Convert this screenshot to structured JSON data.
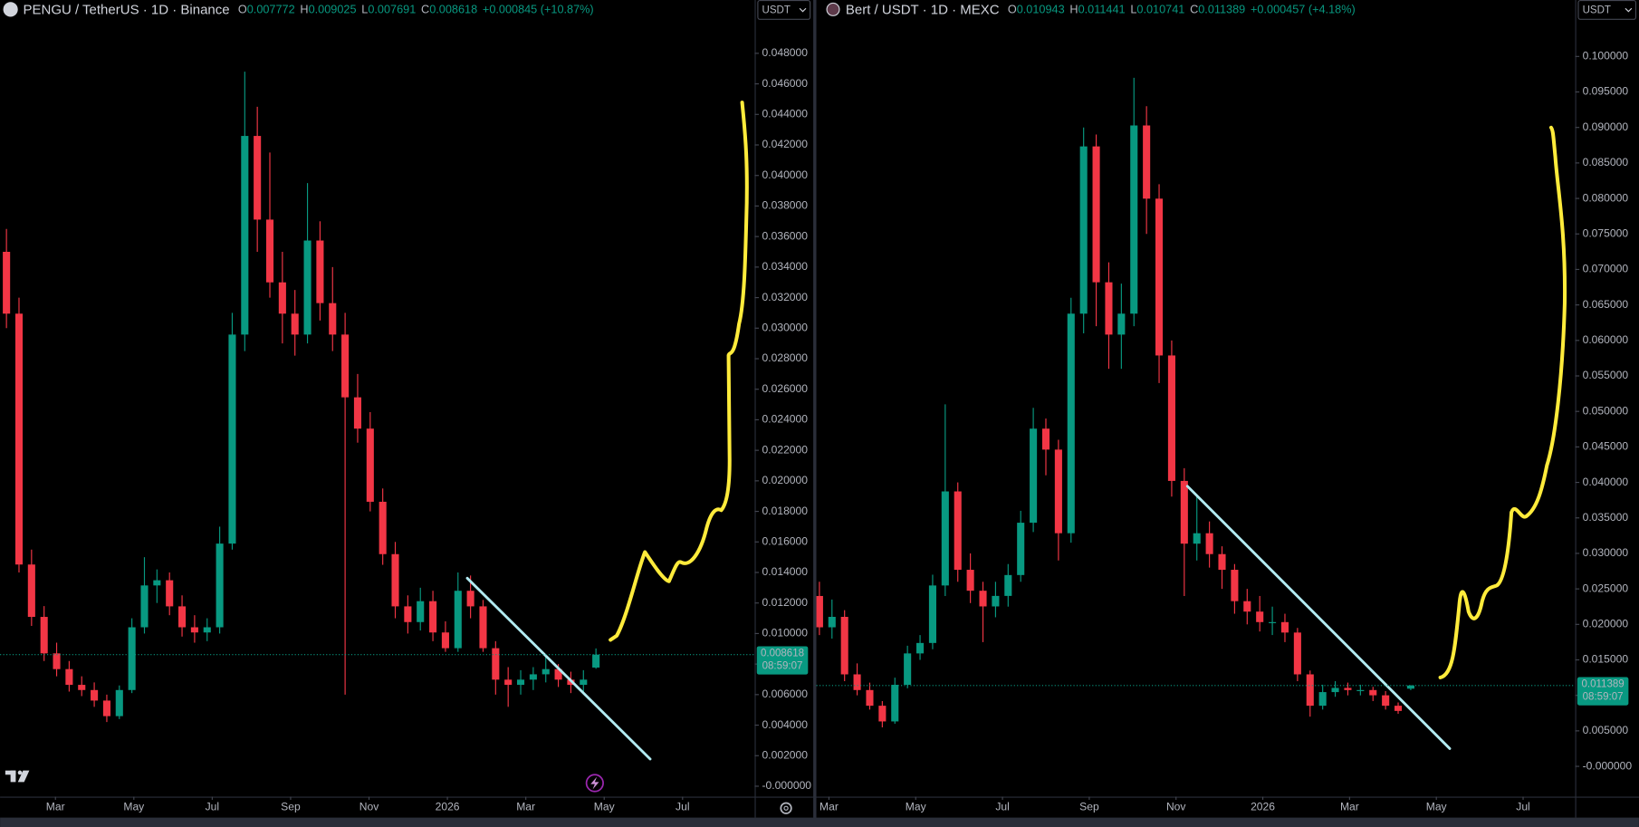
{
  "chart_data": [
    {
      "type": "candlestick",
      "title": "PENGU / TetherUS · 1D · Binance",
      "legend": [
        {
          "label": "O",
          "value": 0.007772
        },
        {
          "label": "H",
          "value": 0.009025
        },
        {
          "label": "L",
          "value": 0.007691
        },
        {
          "label": "C",
          "value": 0.008618
        }
      ],
      "change": "+0.000845 (+10.87%)",
      "currency": "USDT",
      "last_price": 0.008618,
      "countdown": "08:59:07",
      "colors": {
        "up": "#089981",
        "down": "#f23645"
      },
      "x": [
        0.75,
        1.07,
        1.39,
        1.71,
        2.03,
        2.35,
        2.67,
        2.99,
        3.31,
        3.63,
        3.95,
        4.27,
        4.59,
        4.91,
        5.23,
        5.55,
        5.87,
        6.19,
        6.51,
        6.83,
        7.15,
        7.47,
        7.79,
        8.11,
        8.43,
        8.75,
        9.07,
        9.39,
        9.71,
        10.03,
        10.35,
        10.67,
        10.99,
        11.31,
        11.63,
        11.95,
        12.27,
        12.59,
        12.91,
        13.23,
        13.55,
        13.87,
        14.19,
        14.51,
        14.83,
        15.15,
        15.47,
        15.79
      ],
      "open": [
        0.035,
        0.03095,
        0.01452,
        0.01109,
        0.0087,
        0.00767,
        0.00664,
        0.0063,
        0.00561,
        0.00459,
        0.0063,
        0.01041,
        0.01315,
        0.01349,
        0.01178,
        0.01041,
        0.01007,
        0.01041,
        0.01589,
        0.02958,
        0.04259,
        0.03711,
        0.033,
        0.03095,
        0.02958,
        0.03574,
        0.03164,
        0.02958,
        0.02547,
        0.02342,
        0.01863,
        0.0152,
        0.01178,
        0.01075,
        0.01212,
        0.01007,
        0.00904,
        0.0128,
        0.01178,
        0.00904,
        0.00698,
        0.00664,
        0.00698,
        0.00733,
        0.00767,
        0.00698,
        0.00664,
        0.007772
      ],
      "high": [
        0.0365,
        0.032,
        0.0155,
        0.0118,
        0.0094,
        0.0082,
        0.0072,
        0.0068,
        0.006,
        0.0066,
        0.011,
        0.015,
        0.0142,
        0.014,
        0.0125,
        0.0112,
        0.011,
        0.017,
        0.031,
        0.0468,
        0.0445,
        0.0415,
        0.035,
        0.0325,
        0.0395,
        0.037,
        0.034,
        0.031,
        0.027,
        0.0245,
        0.0195,
        0.016,
        0.0125,
        0.013,
        0.0128,
        0.0108,
        0.014,
        0.0138,
        0.0122,
        0.0095,
        0.0078,
        0.0076,
        0.0078,
        0.0085,
        0.008,
        0.0075,
        0.0076,
        0.009025
      ],
      "low": [
        0.03,
        0.014,
        0.0105,
        0.0082,
        0.0072,
        0.0062,
        0.0059,
        0.0052,
        0.0042,
        0.0044,
        0.0061,
        0.01,
        0.012,
        0.0112,
        0.0098,
        0.0094,
        0.0095,
        0.01,
        0.0155,
        0.0285,
        0.035,
        0.032,
        0.029,
        0.0282,
        0.029,
        0.0305,
        0.0285,
        0.006,
        0.0225,
        0.018,
        0.0145,
        0.011,
        0.01,
        0.0102,
        0.0095,
        0.0088,
        0.0088,
        0.011,
        0.0088,
        0.006,
        0.0052,
        0.006,
        0.0063,
        0.0068,
        0.0065,
        0.0061,
        0.0062,
        0.007691
      ],
      "close": [
        0.03095,
        0.01452,
        0.01109,
        0.0087,
        0.00767,
        0.00664,
        0.0063,
        0.00561,
        0.00459,
        0.0063,
        0.01041,
        0.01315,
        0.01349,
        0.01178,
        0.01041,
        0.01007,
        0.01041,
        0.01589,
        0.02958,
        0.04259,
        0.03711,
        0.033,
        0.03095,
        0.02958,
        0.03574,
        0.03164,
        0.02958,
        0.02547,
        0.02342,
        0.01863,
        0.0152,
        0.01178,
        0.01075,
        0.01212,
        0.01007,
        0.00904,
        0.0128,
        0.01178,
        0.00904,
        0.00698,
        0.00664,
        0.00698,
        0.00733,
        0.00767,
        0.00698,
        0.00664,
        0.00698,
        0.008618
      ],
      "xlim": [
        0.587,
        19.84
      ],
      "xticks": [
        {
          "value": 2,
          "label": "Mar"
        },
        {
          "value": 4,
          "label": "May"
        },
        {
          "value": 6,
          "label": "Jul"
        },
        {
          "value": 8,
          "label": "Sep"
        },
        {
          "value": 10,
          "label": "Nov"
        },
        {
          "value": 12,
          "label": "2026"
        },
        {
          "value": 14,
          "label": "Mar"
        },
        {
          "value": 16,
          "label": "May"
        },
        {
          "value": 18,
          "label": "Jul"
        }
      ],
      "ylim": [
        -0.000685,
        0.049986
      ],
      "yticks": [
        {
          "value": 0.048,
          "label": "0.048000"
        },
        {
          "value": 0.046,
          "label": "0.046000"
        },
        {
          "value": 0.044,
          "label": "0.044000"
        },
        {
          "value": 0.042,
          "label": "0.042000"
        },
        {
          "value": 0.04,
          "label": "0.040000"
        },
        {
          "value": 0.038,
          "label": "0.038000"
        },
        {
          "value": 0.036,
          "label": "0.036000"
        },
        {
          "value": 0.034,
          "label": "0.034000"
        },
        {
          "value": 0.032,
          "label": "0.032000"
        },
        {
          "value": 0.03,
          "label": "0.030000"
        },
        {
          "value": 0.028,
          "label": "0.028000"
        },
        {
          "value": 0.026,
          "label": "0.026000"
        },
        {
          "value": 0.024,
          "label": "0.024000"
        },
        {
          "value": 0.022,
          "label": "0.022000"
        },
        {
          "value": 0.02,
          "label": "0.020000"
        },
        {
          "value": 0.018,
          "label": "0.018000"
        },
        {
          "value": 0.016,
          "label": "0.016000"
        },
        {
          "value": 0.014,
          "label": "0.014000"
        },
        {
          "value": 0.012,
          "label": "0.012000"
        },
        {
          "value": 0.01,
          "label": "0.010000"
        },
        {
          "value": 0.008,
          "label": "0.008000"
        },
        {
          "value": 0.006,
          "label": "0.006000"
        },
        {
          "value": 0.004,
          "label": "0.004000"
        },
        {
          "value": 0.002,
          "label": "0.002000"
        },
        {
          "value": 0,
          "label": "-0.000000"
        }
      ]
    },
    {
      "type": "candlestick",
      "title": "Bert / USDT · 1D · MEXC",
      "legend": [
        {
          "label": "O",
          "value": 0.010943
        },
        {
          "label": "H",
          "value": 0.011441
        },
        {
          "label": "L",
          "value": 0.010741
        },
        {
          "label": "C",
          "value": 0.011389
        }
      ],
      "change": "+0.000457 (+4.18%)",
      "currency": "USDT",
      "last_price": 0.011389,
      "countdown": "08:59:07",
      "colors": {
        "up": "#089981",
        "down": "#f23645"
      },
      "x": [
        1.78,
        2.07,
        2.36,
        2.65,
        2.94,
        3.23,
        3.52,
        3.81,
        4.1,
        4.39,
        4.68,
        4.97,
        5.26,
        5.55,
        5.84,
        6.13,
        6.42,
        6.71,
        7,
        7.29,
        7.58,
        7.87,
        8.16,
        8.45,
        8.74,
        9.03,
        9.32,
        9.61,
        9.9,
        10.19,
        10.48,
        10.77,
        11.06,
        11.35,
        11.64,
        11.93,
        12.22,
        12.51,
        12.8,
        13.09,
        13.38,
        13.67,
        13.96,
        14.25,
        14.54,
        14.83,
        15.12,
        15.41
      ],
      "open": [
        0.024,
        0.01959,
        0.02106,
        0.01296,
        0.01075,
        0.00854,
        0.00633,
        0.01149,
        0.01591,
        0.01738,
        0.02548,
        0.03873,
        0.02769,
        0.02474,
        0.02253,
        0.02401,
        0.02695,
        0.03432,
        0.04757,
        0.04462,
        0.03284,
        0.06377,
        0.08733,
        0.06819,
        0.06082,
        0.06377,
        0.09028,
        0.07997,
        0.05788,
        0.04021,
        0.03137,
        0.03284,
        0.0299,
        0.02769,
        0.02327,
        0.0218,
        0.02032,
        0.02032,
        0.01885,
        0.01296,
        0.00854,
        0.01046,
        0.01105,
        0.01075,
        0.01075,
        0.01001,
        0.00854,
        0.010943
      ],
      "high": [
        0.026,
        0.0235,
        0.022,
        0.0145,
        0.0118,
        0.0092,
        0.0125,
        0.017,
        0.0185,
        0.027,
        0.051,
        0.04,
        0.03,
        0.026,
        0.026,
        0.0285,
        0.036,
        0.0505,
        0.049,
        0.046,
        0.066,
        0.09,
        0.089,
        0.071,
        0.068,
        0.097,
        0.093,
        0.082,
        0.06,
        0.042,
        0.038,
        0.0345,
        0.031,
        0.0285,
        0.025,
        0.024,
        0.0225,
        0.0215,
        0.0195,
        0.0135,
        0.0115,
        0.012,
        0.0118,
        0.0115,
        0.0112,
        0.0106,
        0.009,
        0.011441
      ],
      "low": [
        0.0185,
        0.018,
        0.012,
        0.01,
        0.008,
        0.0055,
        0.006,
        0.011,
        0.015,
        0.0165,
        0.024,
        0.026,
        0.023,
        0.0175,
        0.021,
        0.0225,
        0.026,
        0.033,
        0.041,
        0.029,
        0.0315,
        0.061,
        0.062,
        0.056,
        0.056,
        0.062,
        0.075,
        0.054,
        0.038,
        0.024,
        0.029,
        0.028,
        0.025,
        0.0215,
        0.02,
        0.019,
        0.0185,
        0.0175,
        0.012,
        0.007,
        0.008,
        0.0098,
        0.01,
        0.01,
        0.0092,
        0.008,
        0.0074,
        0.010741
      ],
      "close": [
        0.01959,
        0.02106,
        0.01296,
        0.01075,
        0.00854,
        0.00633,
        0.01149,
        0.01591,
        0.01738,
        0.02548,
        0.03873,
        0.02769,
        0.02474,
        0.02253,
        0.02401,
        0.02695,
        0.03432,
        0.04757,
        0.04462,
        0.03284,
        0.06377,
        0.08733,
        0.06819,
        0.06082,
        0.06377,
        0.09028,
        0.07997,
        0.05788,
        0.04021,
        0.03137,
        0.03284,
        0.0299,
        0.02769,
        0.02327,
        0.0218,
        0.02032,
        0.02032,
        0.01885,
        0.01296,
        0.00854,
        0.01046,
        0.01105,
        0.01075,
        0.01075,
        0.01001,
        0.00854,
        0.00781,
        0.011389
      ],
      "xlim": [
        1.71,
        19.2
      ],
      "xticks": [
        {
          "value": 2,
          "label": "Mar"
        },
        {
          "value": 4,
          "label": "May"
        },
        {
          "value": 6,
          "label": "Jul"
        },
        {
          "value": 8,
          "label": "Sep"
        },
        {
          "value": 10,
          "label": "Nov"
        },
        {
          "value": 12,
          "label": "2026"
        },
        {
          "value": 14,
          "label": "Mar"
        },
        {
          "value": 16,
          "label": "May"
        },
        {
          "value": 18,
          "label": "Jul"
        }
      ],
      "ylim": [
        -0.004271,
        0.104713
      ],
      "yticks": [
        {
          "value": 0.1,
          "label": "0.100000"
        },
        {
          "value": 0.095,
          "label": "0.095000"
        },
        {
          "value": 0.09,
          "label": "0.090000"
        },
        {
          "value": 0.085,
          "label": "0.085000"
        },
        {
          "value": 0.08,
          "label": "0.080000"
        },
        {
          "value": 0.075,
          "label": "0.075000"
        },
        {
          "value": 0.07,
          "label": "0.070000"
        },
        {
          "value": 0.065,
          "label": "0.065000"
        },
        {
          "value": 0.06,
          "label": "0.060000"
        },
        {
          "value": 0.055,
          "label": "0.055000"
        },
        {
          "value": 0.05,
          "label": "0.050000"
        },
        {
          "value": 0.045,
          "label": "0.045000"
        },
        {
          "value": 0.04,
          "label": "0.040000"
        },
        {
          "value": 0.035,
          "label": "0.035000"
        },
        {
          "value": 0.03,
          "label": "0.030000"
        },
        {
          "value": 0.025,
          "label": "0.025000"
        },
        {
          "value": 0.02,
          "label": "0.020000"
        },
        {
          "value": 0.015,
          "label": "0.015000"
        },
        {
          "value": 0.01,
          "label": "0.010000"
        },
        {
          "value": 0.005,
          "label": "0.005000"
        },
        {
          "value": 0,
          "label": "-0.000000"
        }
      ]
    }
  ]
}
